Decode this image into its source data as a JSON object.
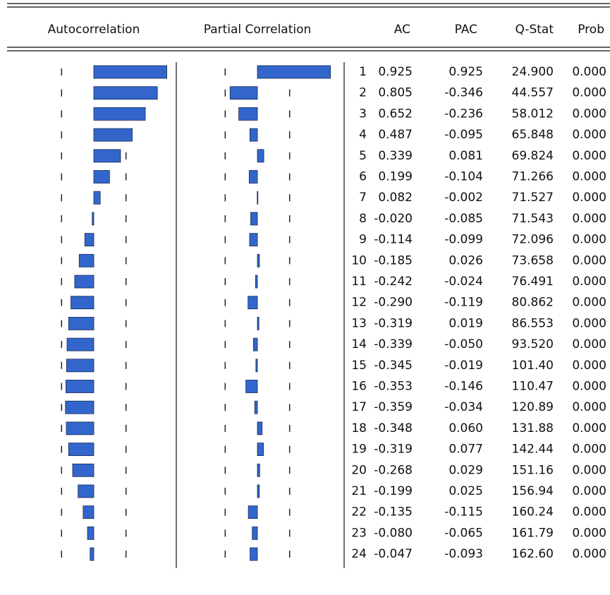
{
  "chart_data": {
    "type": "correlogram",
    "headers": {
      "autocorrelation": "Autocorrelation",
      "partial": "Partial Correlation",
      "ac": "AC",
      "pac": "PAC",
      "q": "Q-Stat",
      "prob": "Prob"
    },
    "lags": [
      1,
      2,
      3,
      4,
      5,
      6,
      7,
      8,
      9,
      10,
      11,
      12,
      13,
      14,
      15,
      16,
      17,
      18,
      19,
      20,
      21,
      22,
      23,
      24
    ],
    "ac": {
      "values": [
        0.925,
        0.805,
        0.652,
        0.487,
        0.339,
        0.199,
        0.082,
        -0.02,
        -0.114,
        -0.185,
        -0.242,
        -0.29,
        -0.319,
        -0.339,
        -0.345,
        -0.353,
        -0.359,
        -0.348,
        -0.319,
        -0.268,
        -0.199,
        -0.135,
        -0.08,
        -0.047
      ],
      "value_labels": [
        "0.925",
        "0.805",
        "0.652",
        "0.487",
        "0.339",
        "0.199",
        "0.082",
        "-0.020",
        "-0.114",
        "-0.185",
        "-0.242",
        "-0.290",
        "-0.319",
        "-0.339",
        "-0.345",
        "-0.353",
        "-0.359",
        "-0.348",
        "-0.319",
        "-0.268",
        "-0.199",
        "-0.135",
        "-0.080",
        "-0.047"
      ]
    },
    "pac": {
      "values": [
        0.925,
        -0.346,
        -0.236,
        -0.095,
        0.081,
        -0.104,
        -0.002,
        -0.085,
        -0.099,
        0.026,
        -0.024,
        -0.119,
        0.019,
        -0.05,
        -0.019,
        -0.146,
        -0.034,
        0.06,
        0.077,
        0.029,
        0.025,
        -0.115,
        -0.065,
        -0.093
      ],
      "value_labels": [
        "0.925",
        "-0.346",
        "-0.236",
        "-0.095",
        "0.081",
        "-0.104",
        "-0.002",
        "-0.085",
        "-0.099",
        "0.026",
        "-0.024",
        "-0.119",
        "0.019",
        "-0.050",
        "-0.019",
        "-0.146",
        "-0.034",
        "0.060",
        "0.077",
        "0.029",
        "0.025",
        "-0.115",
        "-0.065",
        "-0.093"
      ]
    },
    "q_stat": [
      "24.900",
      "44.557",
      "58.012",
      "65.848",
      "69.824",
      "71.266",
      "71.527",
      "71.543",
      "72.096",
      "73.658",
      "76.491",
      "80.862",
      "86.553",
      "93.520",
      "101.40",
      "110.47",
      "120.89",
      "131.88",
      "142.44",
      "151.16",
      "156.94",
      "160.24",
      "161.79",
      "162.60"
    ],
    "prob": [
      "0.000",
      "0.000",
      "0.000",
      "0.000",
      "0.000",
      "0.000",
      "0.000",
      "0.000",
      "0.000",
      "0.000",
      "0.000",
      "0.000",
      "0.000",
      "0.000",
      "0.000",
      "0.000",
      "0.000",
      "0.000",
      "0.000",
      "0.000",
      "0.000",
      "0.000",
      "0.000",
      "0.000"
    ],
    "confidence_band": 0.408,
    "color": "#3366cc"
  }
}
